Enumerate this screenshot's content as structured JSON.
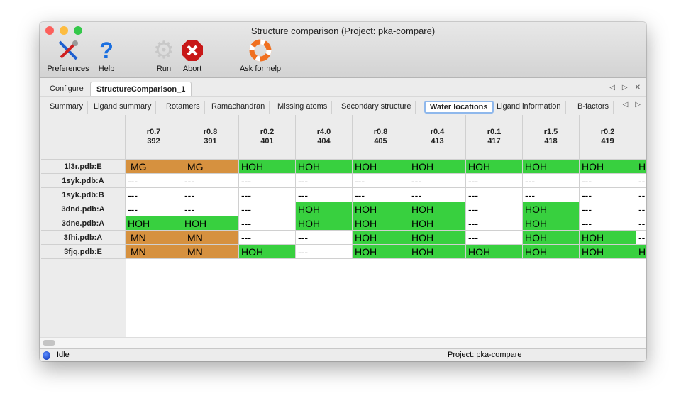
{
  "window": {
    "title": "Structure comparison (Project: pka-compare)"
  },
  "toolbar": [
    {
      "label": "Preferences",
      "icon": "tools-icon"
    },
    {
      "label": "Help",
      "icon": "help-icon"
    },
    {
      "label": "Run",
      "icon": "gear-icon"
    },
    {
      "label": "Abort",
      "icon": "abort-icon"
    },
    {
      "label": "Ask for help",
      "icon": "lifebuoy-icon"
    }
  ],
  "top_tabs": [
    {
      "label": "Configure"
    },
    {
      "label": "StructureComparison_1",
      "active": true
    }
  ],
  "sub_tabs": [
    {
      "label": "Summary"
    },
    {
      "label": "Ligand summary"
    },
    {
      "label": "Rotamers"
    },
    {
      "label": "Ramachandran"
    },
    {
      "label": "Missing atoms"
    },
    {
      "label": "Secondary structure"
    },
    {
      "label": "Water locations",
      "active": true
    },
    {
      "label": "Ligand information"
    },
    {
      "label": "B-factors"
    }
  ],
  "colors": {
    "metal": "#d6913f",
    "water": "#38d03f",
    "empty": "#ffffff"
  },
  "table": {
    "columns": [
      {
        "r": "r0.7",
        "id": "392"
      },
      {
        "r": "r0.8",
        "id": "391"
      },
      {
        "r": "r0.2",
        "id": "401"
      },
      {
        "r": "r4.0",
        "id": "404"
      },
      {
        "r": "r0.8",
        "id": "405"
      },
      {
        "r": "r0.4",
        "id": "413"
      },
      {
        "r": "r0.1",
        "id": "417"
      },
      {
        "r": "r1.5",
        "id": "418"
      },
      {
        "r": "r0.2",
        "id": "419"
      },
      {
        "r": "",
        "id": ""
      }
    ],
    "rows": [
      {
        "label": "1l3r.pdb:E",
        "cells": [
          "MG",
          "MG",
          "HOH",
          "HOH",
          "HOH",
          "HOH",
          "HOH",
          "HOH",
          "HOH",
          "HOH"
        ]
      },
      {
        "label": "1syk.pdb:A",
        "cells": [
          "---",
          "---",
          "---",
          "---",
          "---",
          "---",
          "---",
          "---",
          "---",
          "---"
        ]
      },
      {
        "label": "1syk.pdb:B",
        "cells": [
          "---",
          "---",
          "---",
          "---",
          "---",
          "---",
          "---",
          "---",
          "---",
          "---"
        ]
      },
      {
        "label": "3dnd.pdb:A",
        "cells": [
          "---",
          "---",
          "---",
          "HOH",
          "HOH",
          "HOH",
          "---",
          "HOH",
          "---",
          "---"
        ]
      },
      {
        "label": "3dne.pdb:A",
        "cells": [
          "HOH",
          "HOH",
          "---",
          "HOH",
          "HOH",
          "HOH",
          "---",
          "HOH",
          "---",
          "---"
        ]
      },
      {
        "label": "3fhi.pdb:A",
        "cells": [
          "MN",
          "MN",
          "---",
          "---",
          "HOH",
          "HOH",
          "---",
          "HOH",
          "HOH",
          "---"
        ]
      },
      {
        "label": "3fjq.pdb:E",
        "cells": [
          "MN",
          "MN",
          "HOH",
          "---",
          "HOH",
          "HOH",
          "HOH",
          "HOH",
          "HOH",
          "HOH"
        ]
      }
    ]
  },
  "status": {
    "state": "Idle",
    "project": "Project: pka-compare"
  }
}
